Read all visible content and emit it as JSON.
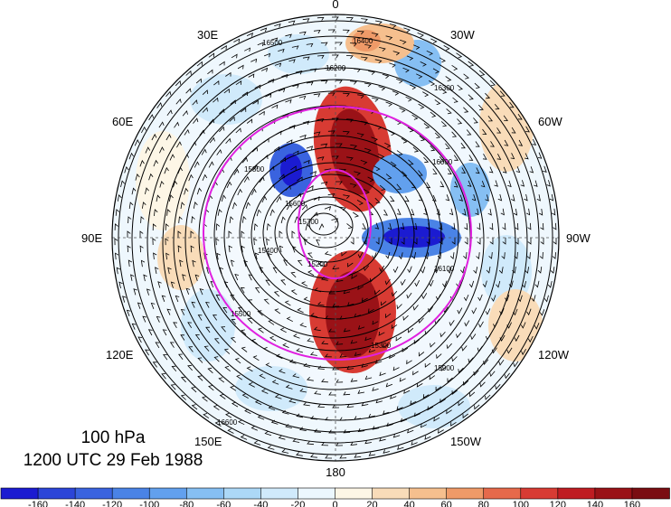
{
  "title": {
    "level": "100 hPa",
    "time": "1200 UTC 29 Feb 1988"
  },
  "longitude_labels": [
    "0",
    "30W",
    "60W",
    "90W",
    "120W",
    "150W",
    "180",
    "150E",
    "120E",
    "90E",
    "60E",
    "30E"
  ],
  "contour_labels": [
    "16400",
    "16500",
    "16200",
    "16300",
    "16000",
    "15800",
    "15600",
    "15400",
    "15200",
    "16100",
    "16600",
    "15900",
    "15700",
    "15500",
    "15300"
  ],
  "colorbar": {
    "labels": [
      "-160",
      "-140",
      "-120",
      "-100",
      "-80",
      "-60",
      "-40",
      "-20",
      "0",
      "20",
      "40",
      "60",
      "80",
      "100",
      "120",
      "140",
      "160"
    ],
    "colors": [
      "#1b1bd1",
      "#2c45d8",
      "#3a63df",
      "#4a83e6",
      "#62a0ee",
      "#86bff3",
      "#acd8f7",
      "#d0eafb",
      "#ecf7fe",
      "#fdf6e6",
      "#f9dcb9",
      "#f5bf8e",
      "#ef9a68",
      "#e6694b",
      "#d83b33",
      "#bf1c22",
      "#9a1217",
      "#7a0d12"
    ]
  },
  "overlay": {
    "contour_color": "#000000",
    "ring_color": "#e020e0"
  }
}
